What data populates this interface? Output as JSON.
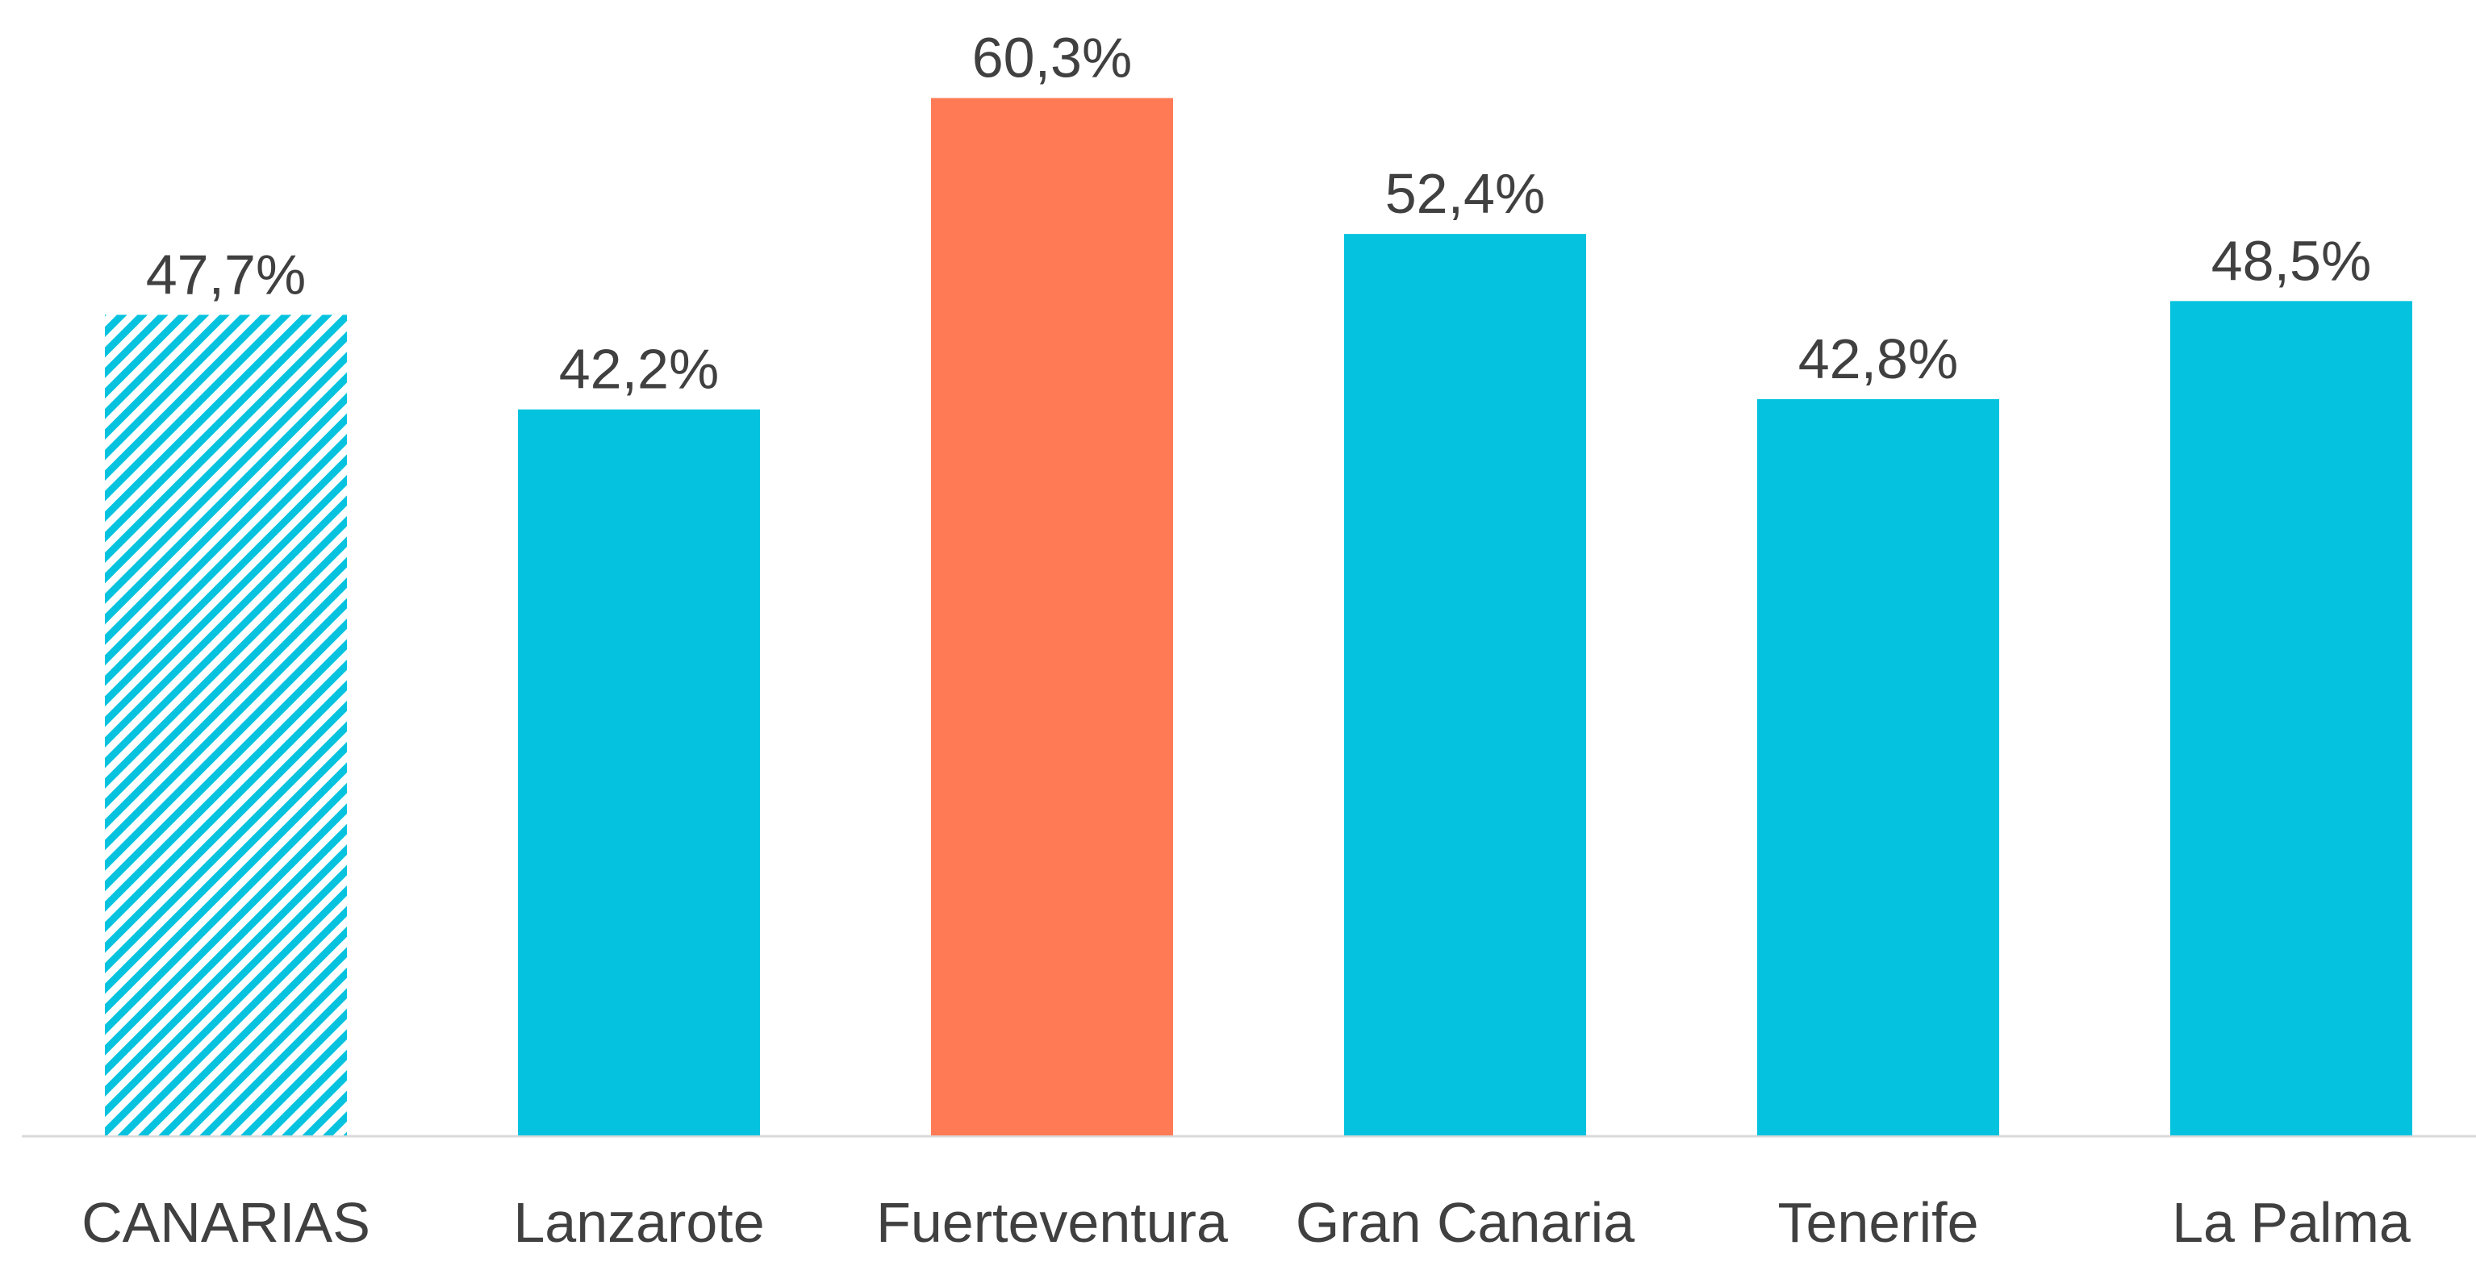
{
  "chart_data": {
    "type": "bar",
    "categories": [
      "CANARIAS",
      "Lanzarote",
      "Fuerteventura",
      "Gran Canaria",
      "Tenerife",
      "La Palma"
    ],
    "values": [
      47.7,
      42.2,
      60.3,
      52.4,
      42.8,
      48.5
    ],
    "value_labels": [
      "47,7%",
      "42,2%",
      "60,3%",
      "52,4%",
      "42,8%",
      "48,5%"
    ],
    "colors": [
      "#05c3de",
      "#05c3de",
      "#ff7a55",
      "#05c3de",
      "#05c3de",
      "#05c3de"
    ],
    "patterns": [
      "hatch",
      null,
      null,
      null,
      null,
      null
    ],
    "ylim": [
      0,
      66
    ],
    "grid": false
  }
}
